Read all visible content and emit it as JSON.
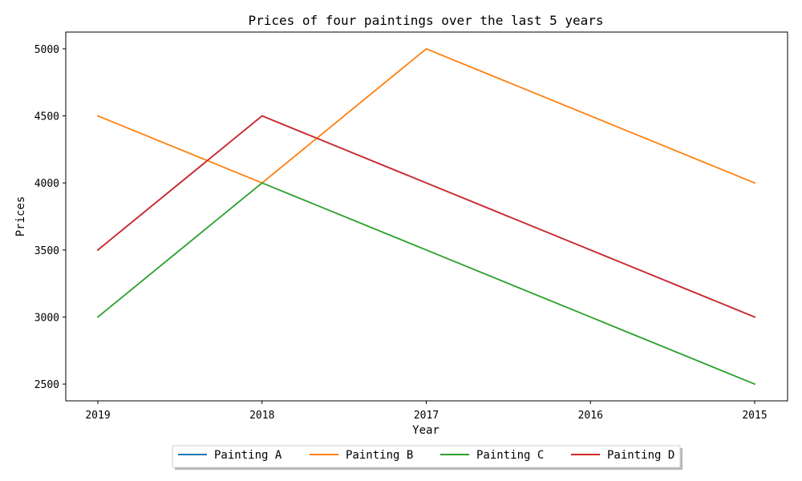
{
  "chart_data": {
    "type": "line",
    "title": "Prices of four paintings over the last 5 years",
    "xlabel": "Year",
    "ylabel": "Prices",
    "categories": [
      "2019",
      "2018",
      "2017",
      "2016",
      "2015"
    ],
    "ylim": [
      2375,
      5125
    ],
    "yticks": [
      2500,
      3000,
      3500,
      4000,
      4500,
      5000
    ],
    "grid": false,
    "legend_position": "bottom-center",
    "series": [
      {
        "name": "Painting A",
        "color": "#1f77b4",
        "values": [
          3500,
          4500,
          4000,
          3500,
          3000
        ]
      },
      {
        "name": "Painting B",
        "color": "#ff7f0e",
        "values": [
          4500,
          4000,
          5000,
          4500,
          4000
        ]
      },
      {
        "name": "Painting C",
        "color": "#2ca02c",
        "values": [
          3000,
          4000,
          3500,
          3000,
          2500
        ]
      },
      {
        "name": "Painting D",
        "color": "#d62728",
        "values": [
          3500,
          4500,
          4000,
          3500,
          3000
        ]
      }
    ]
  }
}
